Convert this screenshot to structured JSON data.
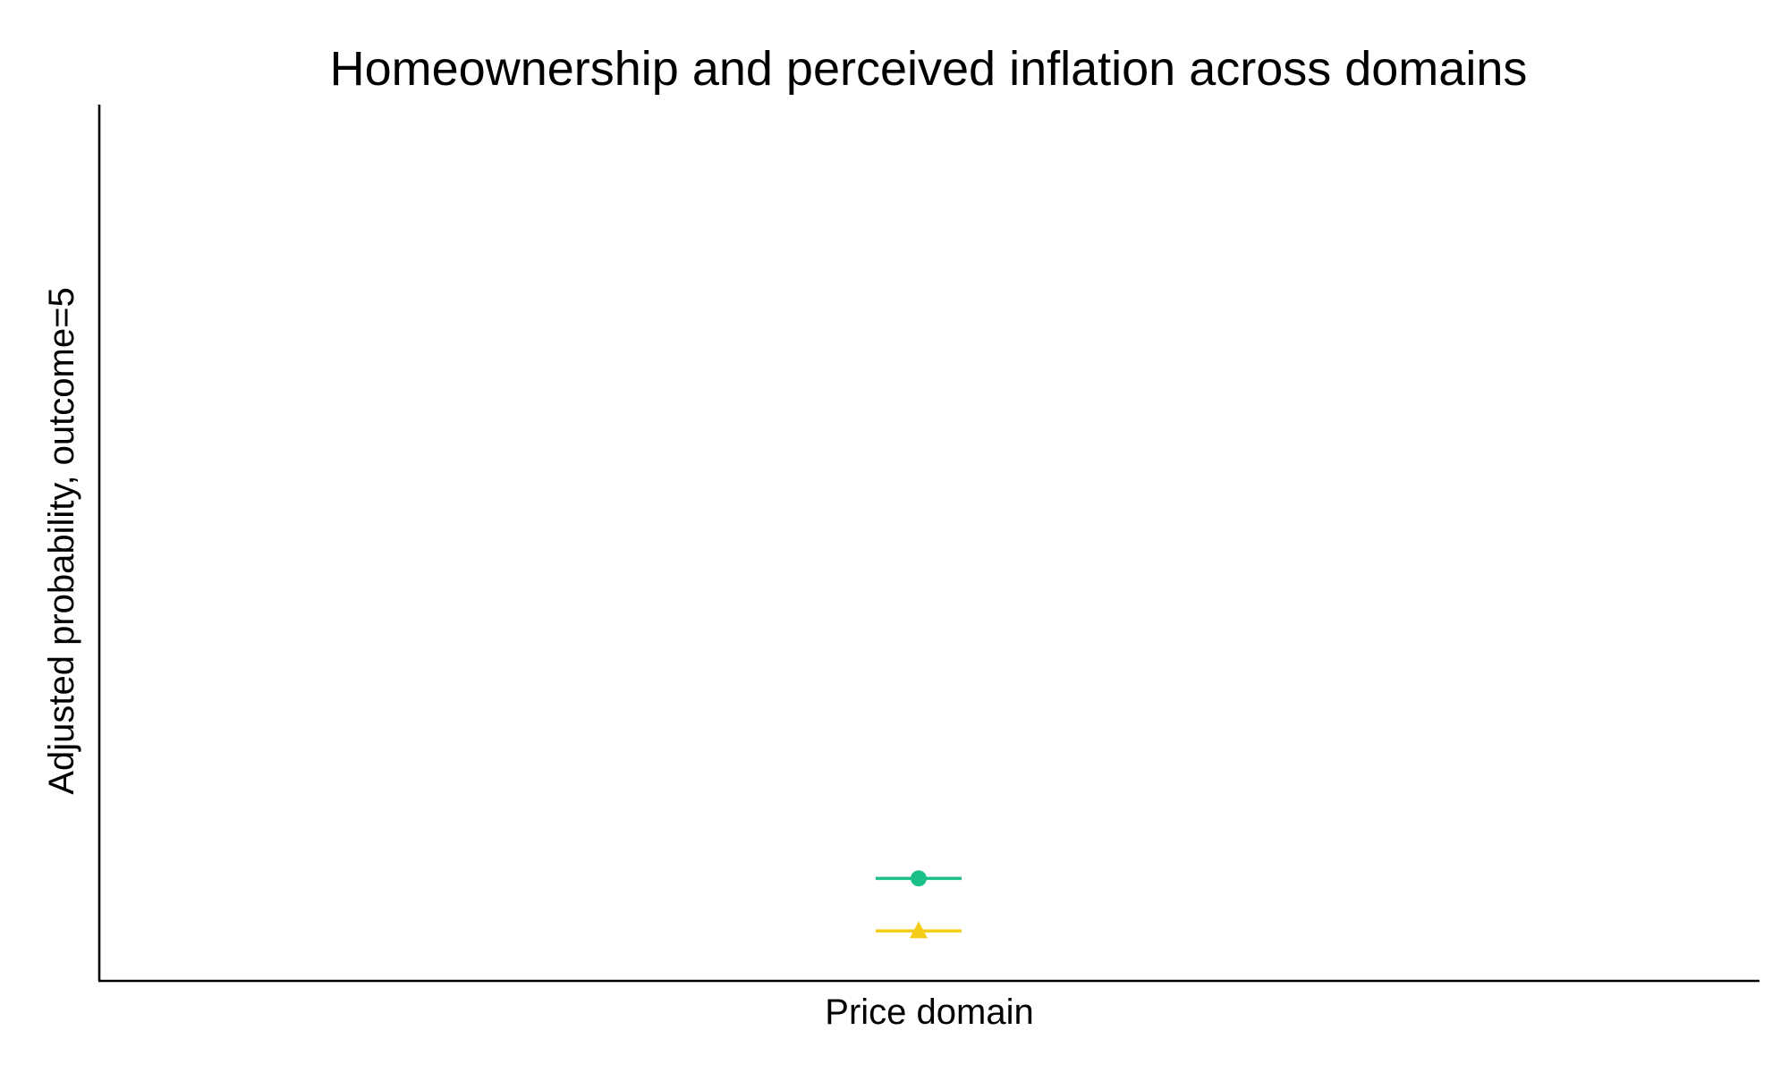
{
  "chart_data": {
    "type": "scatter",
    "title": "Homeownership and perceived inflation across domains",
    "xlabel": "",
    "ylabel": "Adjusted probability, outcome=5",
    "categories": [
      "Price domain"
    ],
    "ylim": [
      0,
      1
    ],
    "grid": false,
    "legend": "none",
    "series": [
      {
        "marker": "circle",
        "color": "#1bbf8a",
        "values": [
          0.117
        ],
        "ci_low": [
          0.117
        ],
        "ci_high": [
          0.117
        ]
      },
      {
        "marker": "triangle",
        "color": "#f5cc16",
        "values": [
          0.057
        ],
        "ci_low": [
          0.057
        ],
        "ci_high": [
          0.057
        ]
      }
    ]
  }
}
